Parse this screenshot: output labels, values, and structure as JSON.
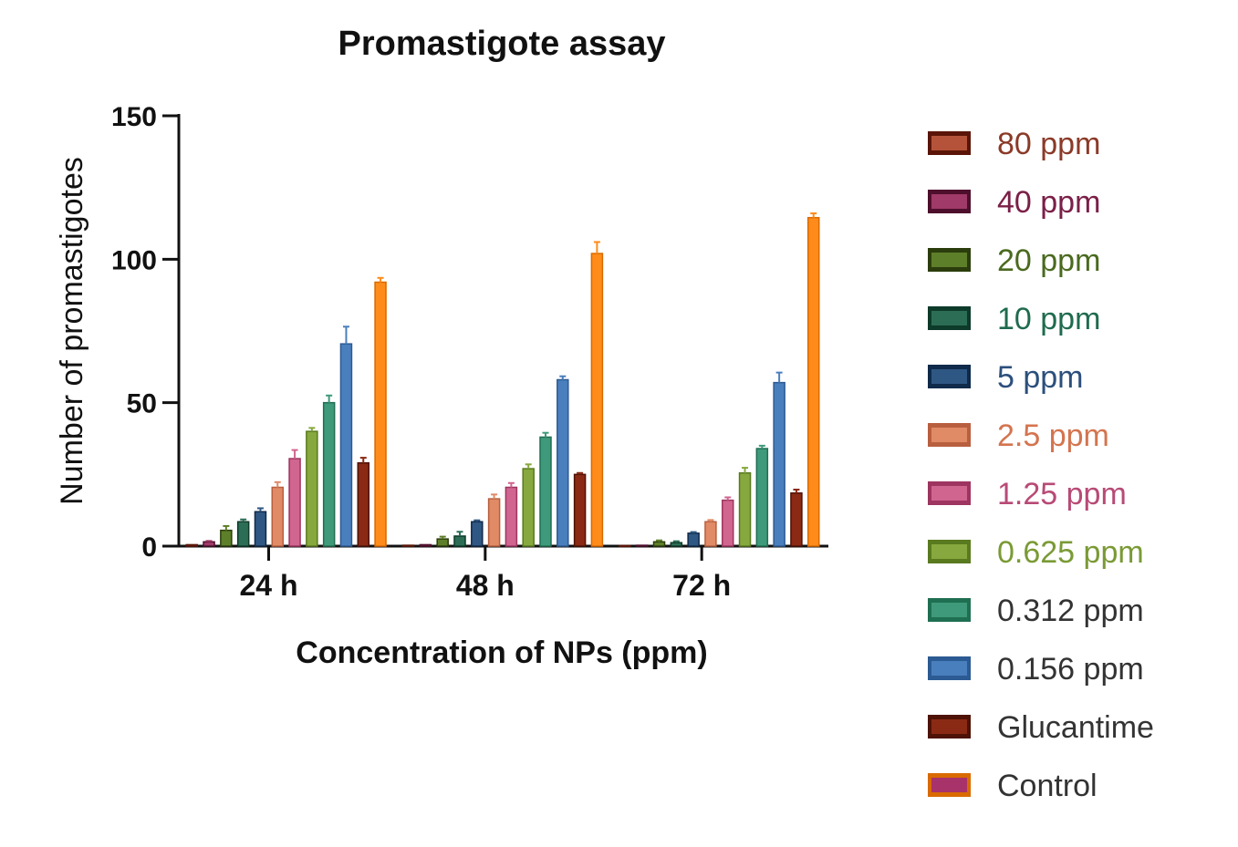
{
  "chart_data": {
    "type": "bar",
    "title": "Promastigote assay",
    "xlabel": "Concentration of NPs (ppm)",
    "ylabel": "Number of promastigotes",
    "ylim": [
      0,
      150
    ],
    "yticks": [
      0,
      50,
      100,
      150
    ],
    "categories": [
      "24 h",
      "48 h",
      "72 h"
    ],
    "grid": false,
    "legend_position": "right",
    "series": [
      {
        "name": "80 ppm",
        "values": [
          0.5,
          0.3,
          0.2
        ],
        "errors": [
          0.2,
          0.2,
          0.2
        ],
        "fill": "#b5533a",
        "border": "#5a1508",
        "text_color": "#8b3a28"
      },
      {
        "name": "40 ppm",
        "values": [
          1.5,
          0.5,
          0.3
        ],
        "errors": [
          0.3,
          0.2,
          0.2
        ],
        "fill": "#a03a68",
        "border": "#4e0f2c",
        "text_color": "#7a2048"
      },
      {
        "name": "20 ppm",
        "values": [
          5.5,
          2.5,
          1.5
        ],
        "errors": [
          1.5,
          0.8,
          0.5
        ],
        "fill": "#5e7f2a",
        "border": "#2b3d0c",
        "text_color": "#4a6a1f"
      },
      {
        "name": "10 ppm",
        "values": [
          8.5,
          3.5,
          1.2
        ],
        "errors": [
          0.8,
          1.5,
          0.5
        ],
        "fill": "#2c6e55",
        "border": "#0d3a2a",
        "text_color": "#1f6b4e"
      },
      {
        "name": "5 ppm",
        "values": [
          12,
          8.5,
          4.5
        ],
        "errors": [
          1.2,
          0.5,
          0.4
        ],
        "fill": "#2f5783",
        "border": "#0f2a4a",
        "text_color": "#2c4f7c"
      },
      {
        "name": "2.5 ppm",
        "values": [
          20.5,
          16.5,
          8.5
        ],
        "errors": [
          1.8,
          1.5,
          0.6
        ],
        "fill": "#e08a66",
        "border": "#b85f3f",
        "text_color": "#d4744f"
      },
      {
        "name": "1.25 ppm",
        "values": [
          30.5,
          20.5,
          16
        ],
        "errors": [
          3,
          1.5,
          1
        ],
        "fill": "#d0658f",
        "border": "#9e3560",
        "text_color": "#b84a76"
      },
      {
        "name": "0.625 ppm",
        "values": [
          40,
          27,
          25.5
        ],
        "errors": [
          1.2,
          1.5,
          1.8
        ],
        "fill": "#86a83e",
        "border": "#5a7a20",
        "text_color": "#7a9a35"
      },
      {
        "name": "0.312 ppm",
        "values": [
          50,
          38,
          34
        ],
        "errors": [
          2.5,
          1.5,
          1
        ],
        "fill": "#3e9a7a",
        "border": "#1f6f52",
        "text_color": "#333333"
      },
      {
        "name": "0.156 ppm",
        "values": [
          70.5,
          58,
          57
        ],
        "errors": [
          6,
          1.2,
          3.5
        ],
        "fill": "#4a7fbd",
        "border": "#2c5a93",
        "text_color": "#333333"
      },
      {
        "name": "Glucantime",
        "values": [
          29,
          25,
          18.5
        ],
        "errors": [
          1.8,
          0.5,
          1.2
        ],
        "fill": "#8a2a14",
        "border": "#4e1206",
        "text_color": "#333333"
      },
      {
        "name": "Control",
        "values": [
          92,
          102,
          114.5
        ],
        "errors": [
          1.5,
          4,
          1.5
        ],
        "fill": "#ff8c1a",
        "border": "#d96a00",
        "text_color": "#333333",
        "legend_inner": "#a8326a"
      }
    ]
  }
}
